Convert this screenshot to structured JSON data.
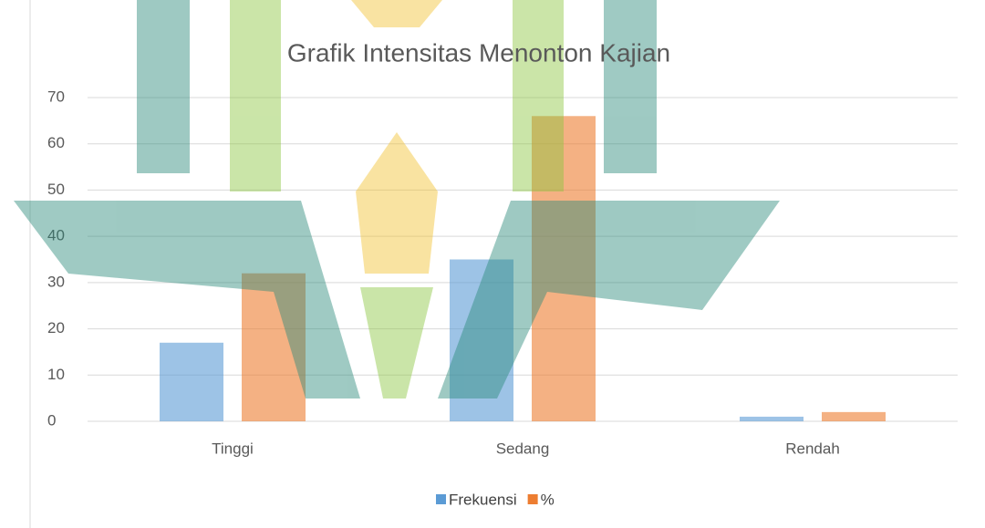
{
  "chart_data": {
    "type": "bar",
    "title": "Grafik Intensitas Menonton Kajian",
    "categories": [
      "Tinggi",
      "Sedang",
      "Rendah"
    ],
    "series": [
      {
        "name": "Frekuensi",
        "color": "#5b9bd5",
        "values": [
          17,
          35,
          1
        ]
      },
      {
        "name": "%",
        "color": "#ed7d31",
        "values": [
          32,
          66,
          2
        ]
      }
    ],
    "ylim": [
      0,
      70
    ],
    "yticks": [
      0,
      10,
      20,
      30,
      40,
      50,
      60,
      70
    ],
    "grid": true,
    "legend": "bottom"
  }
}
